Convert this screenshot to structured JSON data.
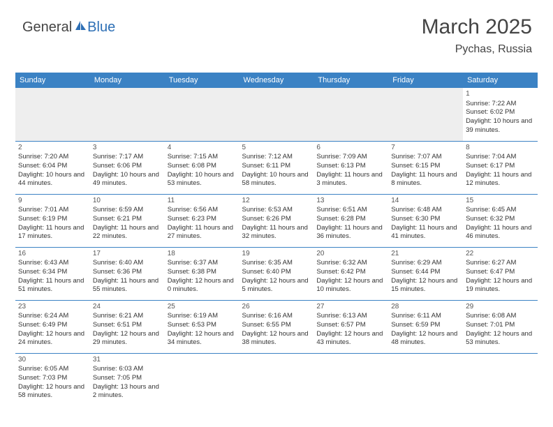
{
  "logo": {
    "part1": "General",
    "part2": "Blue"
  },
  "title": "March 2025",
  "location": "Pychas, Russia",
  "colors": {
    "header_bg": "#3b82c4",
    "header_text": "#ffffff",
    "border": "#3b82c4",
    "empty_bg": "#eeeeee",
    "text": "#333333",
    "logo_gray": "#444444",
    "logo_blue": "#2d6fb5"
  },
  "day_headers": [
    "Sunday",
    "Monday",
    "Tuesday",
    "Wednesday",
    "Thursday",
    "Friday",
    "Saturday"
  ],
  "weeks": [
    [
      null,
      null,
      null,
      null,
      null,
      null,
      {
        "n": "1",
        "sr": "Sunrise: 7:22 AM",
        "ss": "Sunset: 6:02 PM",
        "dl": "Daylight: 10 hours and 39 minutes."
      }
    ],
    [
      {
        "n": "2",
        "sr": "Sunrise: 7:20 AM",
        "ss": "Sunset: 6:04 PM",
        "dl": "Daylight: 10 hours and 44 minutes."
      },
      {
        "n": "3",
        "sr": "Sunrise: 7:17 AM",
        "ss": "Sunset: 6:06 PM",
        "dl": "Daylight: 10 hours and 49 minutes."
      },
      {
        "n": "4",
        "sr": "Sunrise: 7:15 AM",
        "ss": "Sunset: 6:08 PM",
        "dl": "Daylight: 10 hours and 53 minutes."
      },
      {
        "n": "5",
        "sr": "Sunrise: 7:12 AM",
        "ss": "Sunset: 6:11 PM",
        "dl": "Daylight: 10 hours and 58 minutes."
      },
      {
        "n": "6",
        "sr": "Sunrise: 7:09 AM",
        "ss": "Sunset: 6:13 PM",
        "dl": "Daylight: 11 hours and 3 minutes."
      },
      {
        "n": "7",
        "sr": "Sunrise: 7:07 AM",
        "ss": "Sunset: 6:15 PM",
        "dl": "Daylight: 11 hours and 8 minutes."
      },
      {
        "n": "8",
        "sr": "Sunrise: 7:04 AM",
        "ss": "Sunset: 6:17 PM",
        "dl": "Daylight: 11 hours and 12 minutes."
      }
    ],
    [
      {
        "n": "9",
        "sr": "Sunrise: 7:01 AM",
        "ss": "Sunset: 6:19 PM",
        "dl": "Daylight: 11 hours and 17 minutes."
      },
      {
        "n": "10",
        "sr": "Sunrise: 6:59 AM",
        "ss": "Sunset: 6:21 PM",
        "dl": "Daylight: 11 hours and 22 minutes."
      },
      {
        "n": "11",
        "sr": "Sunrise: 6:56 AM",
        "ss": "Sunset: 6:23 PM",
        "dl": "Daylight: 11 hours and 27 minutes."
      },
      {
        "n": "12",
        "sr": "Sunrise: 6:53 AM",
        "ss": "Sunset: 6:26 PM",
        "dl": "Daylight: 11 hours and 32 minutes."
      },
      {
        "n": "13",
        "sr": "Sunrise: 6:51 AM",
        "ss": "Sunset: 6:28 PM",
        "dl": "Daylight: 11 hours and 36 minutes."
      },
      {
        "n": "14",
        "sr": "Sunrise: 6:48 AM",
        "ss": "Sunset: 6:30 PM",
        "dl": "Daylight: 11 hours and 41 minutes."
      },
      {
        "n": "15",
        "sr": "Sunrise: 6:45 AM",
        "ss": "Sunset: 6:32 PM",
        "dl": "Daylight: 11 hours and 46 minutes."
      }
    ],
    [
      {
        "n": "16",
        "sr": "Sunrise: 6:43 AM",
        "ss": "Sunset: 6:34 PM",
        "dl": "Daylight: 11 hours and 51 minutes."
      },
      {
        "n": "17",
        "sr": "Sunrise: 6:40 AM",
        "ss": "Sunset: 6:36 PM",
        "dl": "Daylight: 11 hours and 55 minutes."
      },
      {
        "n": "18",
        "sr": "Sunrise: 6:37 AM",
        "ss": "Sunset: 6:38 PM",
        "dl": "Daylight: 12 hours and 0 minutes."
      },
      {
        "n": "19",
        "sr": "Sunrise: 6:35 AM",
        "ss": "Sunset: 6:40 PM",
        "dl": "Daylight: 12 hours and 5 minutes."
      },
      {
        "n": "20",
        "sr": "Sunrise: 6:32 AM",
        "ss": "Sunset: 6:42 PM",
        "dl": "Daylight: 12 hours and 10 minutes."
      },
      {
        "n": "21",
        "sr": "Sunrise: 6:29 AM",
        "ss": "Sunset: 6:44 PM",
        "dl": "Daylight: 12 hours and 15 minutes."
      },
      {
        "n": "22",
        "sr": "Sunrise: 6:27 AM",
        "ss": "Sunset: 6:47 PM",
        "dl": "Daylight: 12 hours and 19 minutes."
      }
    ],
    [
      {
        "n": "23",
        "sr": "Sunrise: 6:24 AM",
        "ss": "Sunset: 6:49 PM",
        "dl": "Daylight: 12 hours and 24 minutes."
      },
      {
        "n": "24",
        "sr": "Sunrise: 6:21 AM",
        "ss": "Sunset: 6:51 PM",
        "dl": "Daylight: 12 hours and 29 minutes."
      },
      {
        "n": "25",
        "sr": "Sunrise: 6:19 AM",
        "ss": "Sunset: 6:53 PM",
        "dl": "Daylight: 12 hours and 34 minutes."
      },
      {
        "n": "26",
        "sr": "Sunrise: 6:16 AM",
        "ss": "Sunset: 6:55 PM",
        "dl": "Daylight: 12 hours and 38 minutes."
      },
      {
        "n": "27",
        "sr": "Sunrise: 6:13 AM",
        "ss": "Sunset: 6:57 PM",
        "dl": "Daylight: 12 hours and 43 minutes."
      },
      {
        "n": "28",
        "sr": "Sunrise: 6:11 AM",
        "ss": "Sunset: 6:59 PM",
        "dl": "Daylight: 12 hours and 48 minutes."
      },
      {
        "n": "29",
        "sr": "Sunrise: 6:08 AM",
        "ss": "Sunset: 7:01 PM",
        "dl": "Daylight: 12 hours and 53 minutes."
      }
    ],
    [
      {
        "n": "30",
        "sr": "Sunrise: 6:05 AM",
        "ss": "Sunset: 7:03 PM",
        "dl": "Daylight: 12 hours and 58 minutes."
      },
      {
        "n": "31",
        "sr": "Sunrise: 6:03 AM",
        "ss": "Sunset: 7:05 PM",
        "dl": "Daylight: 13 hours and 2 minutes."
      },
      null,
      null,
      null,
      null,
      null
    ]
  ]
}
